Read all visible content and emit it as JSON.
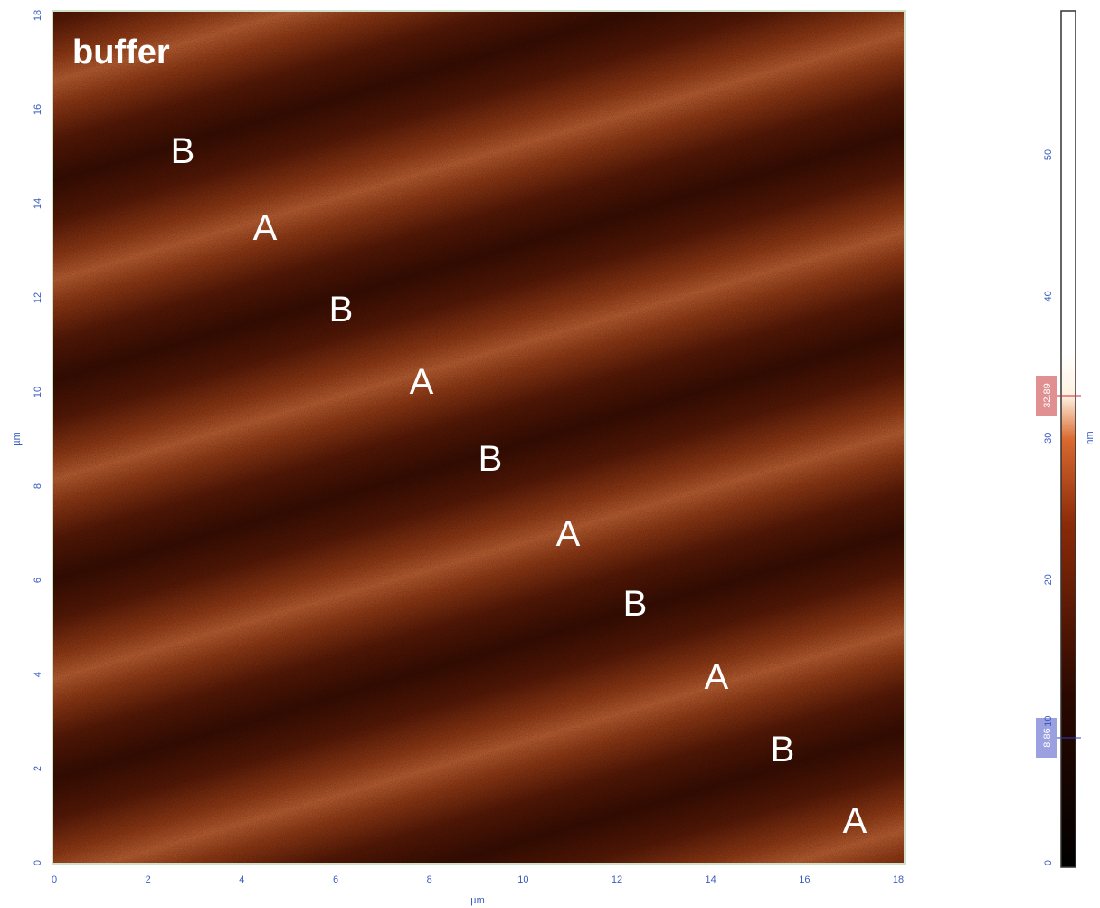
{
  "image": {
    "labels": [
      "buffer",
      "B",
      "A",
      "B",
      "A",
      "B",
      "A",
      "B",
      "A",
      "B",
      "A"
    ]
  },
  "x_axis": {
    "ticks": [
      "0",
      "2",
      "4",
      "6",
      "8",
      "10",
      "12",
      "14",
      "16",
      "18"
    ],
    "unit": "µm"
  },
  "y_axis": {
    "ticks": [
      "0",
      "2",
      "4",
      "6",
      "8",
      "10",
      "12",
      "14",
      "16",
      "18"
    ],
    "unit": "µm"
  },
  "colorbar": {
    "ticks": [
      "0",
      "10",
      "20",
      "30",
      "40",
      "50"
    ],
    "unit": "nm",
    "markers": [
      "32.89",
      "8.86"
    ]
  }
}
